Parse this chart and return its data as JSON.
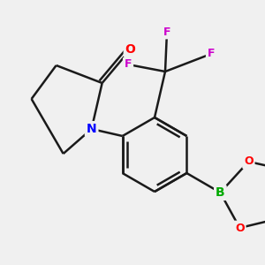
{
  "bg_color": "#f0f0f0",
  "bond_color": "#1a1a1a",
  "bond_width": 1.8,
  "atom_colors": {
    "C": "#1a1a1a",
    "N": "#0000ff",
    "O": "#ff0000",
    "F": "#cc00cc",
    "B": "#00aa00"
  },
  "figsize": [
    3.0,
    3.0
  ],
  "dpi": 100,
  "xlim": [
    0,
    300
  ],
  "ylim": [
    0,
    300
  ]
}
